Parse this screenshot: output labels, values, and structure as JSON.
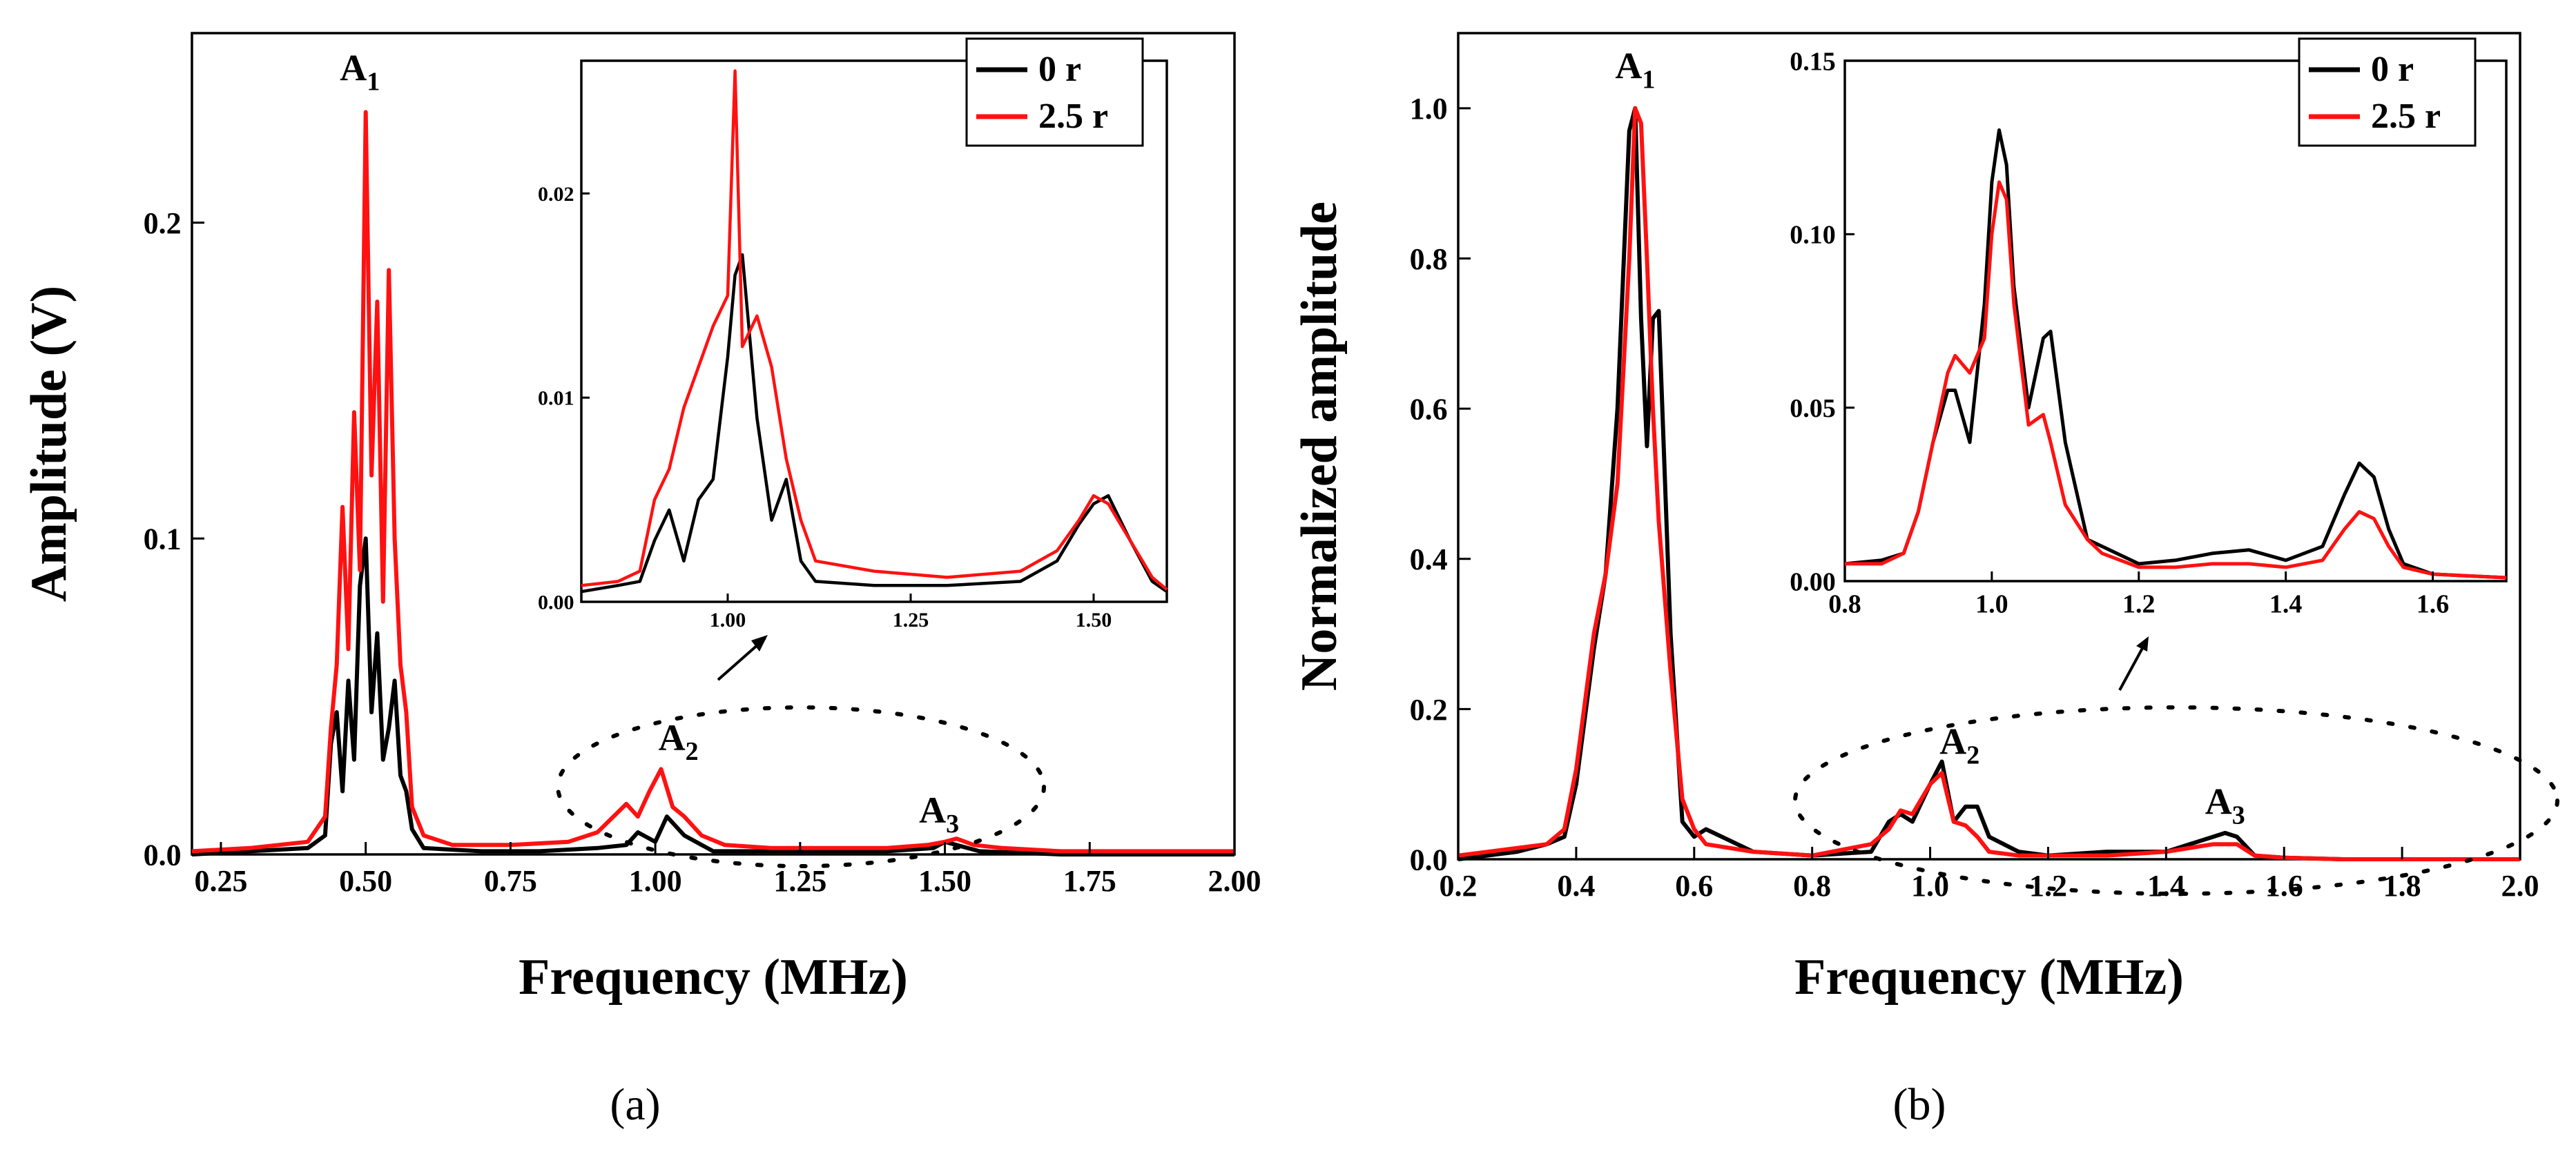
{
  "colors": {
    "series_0r": "#000000",
    "series_25r": "#ff1111",
    "frame": "#000000",
    "background": "#ffffff"
  },
  "legend_labels": [
    "0 r",
    "2.5 r"
  ],
  "captions": {
    "a": "(a)",
    "b": "(b)"
  },
  "chart_data": [
    {
      "id": "a-main",
      "type": "line",
      "xlabel": "Frequency (MHz)",
      "ylabel": "Amplitude (V)",
      "xlim": [
        0.2,
        2.0
      ],
      "ylim": [
        0,
        0.26
      ],
      "xticks": [
        "0.25",
        "0.50",
        "0.75",
        "1.00",
        "1.25",
        "1.50",
        "1.75",
        "2.00"
      ],
      "yticks": [
        "0.0",
        "0.1",
        "0.2"
      ],
      "annotations": [
        {
          "base": "A",
          "sub": "1",
          "x": 0.49,
          "y": 0.245
        },
        {
          "base": "A",
          "sub": "2",
          "x": 1.04,
          "y": 0.033
        },
        {
          "base": "A",
          "sub": "3",
          "x": 1.49,
          "y": 0.01
        }
      ],
      "legend": "top-right",
      "series": [
        {
          "name": "0 r",
          "x": [
            0.2,
            0.3,
            0.4,
            0.43,
            0.44,
            0.45,
            0.46,
            0.47,
            0.48,
            0.49,
            0.5,
            0.51,
            0.52,
            0.53,
            0.54,
            0.55,
            0.56,
            0.57,
            0.58,
            0.6,
            0.7,
            0.8,
            0.9,
            0.95,
            0.97,
            1.0,
            1.02,
            1.05,
            1.1,
            1.2,
            1.4,
            1.48,
            1.5,
            1.52,
            1.56,
            1.7,
            2.0
          ],
          "y": [
            0,
            0.001,
            0.002,
            0.006,
            0.035,
            0.045,
            0.02,
            0.055,
            0.03,
            0.085,
            0.1,
            0.045,
            0.07,
            0.03,
            0.04,
            0.055,
            0.025,
            0.02,
            0.008,
            0.002,
            0.001,
            0.001,
            0.002,
            0.003,
            0.007,
            0.004,
            0.012,
            0.006,
            0.001,
            0.001,
            0.001,
            0.002,
            0.004,
            0.003,
            0.001,
            0,
            0
          ]
        },
        {
          "name": "2.5 r",
          "x": [
            0.2,
            0.3,
            0.4,
            0.43,
            0.44,
            0.45,
            0.46,
            0.47,
            0.48,
            0.49,
            0.5,
            0.51,
            0.52,
            0.53,
            0.54,
            0.55,
            0.56,
            0.57,
            0.58,
            0.6,
            0.65,
            0.75,
            0.85,
            0.9,
            0.95,
            0.97,
            0.99,
            1.01,
            1.03,
            1.05,
            1.08,
            1.12,
            1.2,
            1.4,
            1.47,
            1.5,
            1.52,
            1.55,
            1.6,
            1.7,
            2.0
          ],
          "y": [
            0.001,
            0.002,
            0.004,
            0.012,
            0.04,
            0.06,
            0.11,
            0.065,
            0.14,
            0.09,
            0.235,
            0.12,
            0.175,
            0.08,
            0.185,
            0.1,
            0.06,
            0.045,
            0.015,
            0.006,
            0.003,
            0.003,
            0.004,
            0.007,
            0.016,
            0.012,
            0.02,
            0.027,
            0.015,
            0.012,
            0.006,
            0.003,
            0.002,
            0.002,
            0.003,
            0.004,
            0.005,
            0.003,
            0.002,
            0.001,
            0.001
          ]
        }
      ]
    },
    {
      "id": "a-inset",
      "type": "line",
      "xlim": [
        0.8,
        1.6
      ],
      "ylim": [
        0,
        0.0265
      ],
      "xticks": [
        "1.00",
        "1.25",
        "1.50"
      ],
      "yticks": [
        "0.00",
        "0.01",
        "0.02"
      ],
      "series": [
        {
          "name": "0 r",
          "x": [
            0.8,
            0.85,
            0.88,
            0.9,
            0.92,
            0.94,
            0.96,
            0.98,
            1.0,
            1.01,
            1.02,
            1.04,
            1.06,
            1.08,
            1.1,
            1.12,
            1.2,
            1.3,
            1.4,
            1.45,
            1.48,
            1.5,
            1.52,
            1.55,
            1.58,
            1.6
          ],
          "y": [
            0.0005,
            0.0008,
            0.001,
            0.003,
            0.0045,
            0.002,
            0.005,
            0.006,
            0.012,
            0.016,
            0.017,
            0.009,
            0.004,
            0.006,
            0.002,
            0.001,
            0.0008,
            0.0008,
            0.001,
            0.002,
            0.0038,
            0.0048,
            0.0052,
            0.003,
            0.001,
            0.0005
          ]
        },
        {
          "name": "2.5 r",
          "x": [
            0.8,
            0.85,
            0.88,
            0.9,
            0.92,
            0.94,
            0.96,
            0.98,
            1.0,
            1.01,
            1.02,
            1.04,
            1.06,
            1.08,
            1.1,
            1.12,
            1.2,
            1.3,
            1.4,
            1.45,
            1.48,
            1.5,
            1.52,
            1.55,
            1.58,
            1.6
          ],
          "y": [
            0.0008,
            0.001,
            0.0015,
            0.005,
            0.0065,
            0.0095,
            0.0115,
            0.0135,
            0.015,
            0.026,
            0.0125,
            0.014,
            0.0115,
            0.007,
            0.004,
            0.002,
            0.0015,
            0.0012,
            0.0015,
            0.0025,
            0.004,
            0.0052,
            0.0048,
            0.003,
            0.0012,
            0.0006
          ]
        }
      ]
    },
    {
      "id": "b-main",
      "type": "line",
      "xlabel": "Frequency (MHz)",
      "ylabel": "Normalized amplitude",
      "xlim": [
        0.2,
        2.0
      ],
      "ylim": [
        0,
        1.1
      ],
      "xticks": [
        "0.2",
        "0.4",
        "0.6",
        "0.8",
        "1.0",
        "1.2",
        "1.4",
        "1.6",
        "1.8",
        "2.0"
      ],
      "yticks": [
        "0.0",
        "0.2",
        "0.4",
        "0.6",
        "0.8",
        "1.0"
      ],
      "annotations": [
        {
          "base": "A",
          "sub": "1",
          "x": 0.5,
          "y": 1.04
        },
        {
          "base": "A",
          "sub": "2",
          "x": 1.05,
          "y": 0.14
        },
        {
          "base": "A",
          "sub": "3",
          "x": 1.5,
          "y": 0.06
        }
      ],
      "legend": "top-right",
      "series": [
        {
          "name": "0 r",
          "x": [
            0.2,
            0.3,
            0.35,
            0.38,
            0.4,
            0.43,
            0.45,
            0.47,
            0.49,
            0.5,
            0.51,
            0.52,
            0.53,
            0.54,
            0.56,
            0.58,
            0.6,
            0.62,
            0.7,
            0.8,
            0.9,
            0.93,
            0.95,
            0.97,
            1.0,
            1.02,
            1.04,
            1.06,
            1.08,
            1.1,
            1.15,
            1.2,
            1.3,
            1.4,
            1.48,
            1.5,
            1.52,
            1.55,
            1.6,
            1.7,
            2.0
          ],
          "y": [
            0,
            0.01,
            0.02,
            0.03,
            0.1,
            0.28,
            0.38,
            0.6,
            0.97,
            1.0,
            0.72,
            0.55,
            0.72,
            0.73,
            0.3,
            0.05,
            0.03,
            0.04,
            0.01,
            0.005,
            0.01,
            0.05,
            0.06,
            0.05,
            0.1,
            0.13,
            0.05,
            0.07,
            0.07,
            0.03,
            0.01,
            0.005,
            0.01,
            0.01,
            0.03,
            0.035,
            0.03,
            0.005,
            0.002,
            0,
            0
          ]
        },
        {
          "name": "2.5 r",
          "x": [
            0.2,
            0.3,
            0.35,
            0.38,
            0.4,
            0.43,
            0.45,
            0.47,
            0.49,
            0.5,
            0.51,
            0.52,
            0.53,
            0.54,
            0.56,
            0.58,
            0.6,
            0.62,
            0.7,
            0.8,
            0.9,
            0.93,
            0.95,
            0.97,
            1.0,
            1.02,
            1.04,
            1.06,
            1.08,
            1.1,
            1.15,
            1.2,
            1.3,
            1.4,
            1.48,
            1.5,
            1.52,
            1.55,
            1.6,
            1.7,
            2.0
          ],
          "y": [
            0.005,
            0.015,
            0.02,
            0.04,
            0.12,
            0.3,
            0.38,
            0.5,
            0.8,
            1.0,
            0.98,
            0.8,
            0.6,
            0.45,
            0.25,
            0.08,
            0.04,
            0.02,
            0.01,
            0.005,
            0.02,
            0.04,
            0.065,
            0.06,
            0.1,
            0.115,
            0.05,
            0.045,
            0.03,
            0.01,
            0.005,
            0.005,
            0.005,
            0.01,
            0.02,
            0.02,
            0.02,
            0.005,
            0.002,
            0,
            0
          ]
        }
      ]
    },
    {
      "id": "b-inset",
      "type": "line",
      "xlim": [
        0.8,
        1.7
      ],
      "ylim": [
        0,
        0.15
      ],
      "xticks": [
        "0.8",
        "1.0",
        "1.2",
        "1.4",
        "1.6"
      ],
      "yticks": [
        "0.00",
        "0.05",
        "0.10",
        "0.15"
      ],
      "series": [
        {
          "name": "0 r",
          "x": [
            0.8,
            0.85,
            0.88,
            0.9,
            0.92,
            0.94,
            0.95,
            0.97,
            0.99,
            1.0,
            1.01,
            1.02,
            1.03,
            1.05,
            1.07,
            1.08,
            1.1,
            1.13,
            1.15,
            1.2,
            1.25,
            1.3,
            1.35,
            1.4,
            1.45,
            1.48,
            1.5,
            1.52,
            1.54,
            1.56,
            1.6,
            1.7
          ],
          "y": [
            0.005,
            0.006,
            0.008,
            0.02,
            0.04,
            0.055,
            0.055,
            0.04,
            0.08,
            0.115,
            0.13,
            0.12,
            0.085,
            0.05,
            0.07,
            0.072,
            0.04,
            0.012,
            0.01,
            0.005,
            0.006,
            0.008,
            0.009,
            0.006,
            0.01,
            0.025,
            0.034,
            0.03,
            0.015,
            0.005,
            0.002,
            0.001
          ]
        },
        {
          "name": "2.5 r",
          "x": [
            0.8,
            0.85,
            0.88,
            0.9,
            0.92,
            0.94,
            0.95,
            0.97,
            0.99,
            1.0,
            1.01,
            1.02,
            1.03,
            1.05,
            1.07,
            1.08,
            1.1,
            1.13,
            1.15,
            1.2,
            1.25,
            1.3,
            1.35,
            1.4,
            1.45,
            1.48,
            1.5,
            1.52,
            1.54,
            1.56,
            1.6,
            1.7
          ],
          "y": [
            0.005,
            0.005,
            0.008,
            0.02,
            0.04,
            0.06,
            0.065,
            0.06,
            0.07,
            0.1,
            0.115,
            0.11,
            0.08,
            0.045,
            0.048,
            0.04,
            0.022,
            0.012,
            0.008,
            0.004,
            0.004,
            0.005,
            0.005,
            0.004,
            0.006,
            0.015,
            0.02,
            0.018,
            0.01,
            0.004,
            0.002,
            0.001
          ]
        }
      ]
    }
  ]
}
